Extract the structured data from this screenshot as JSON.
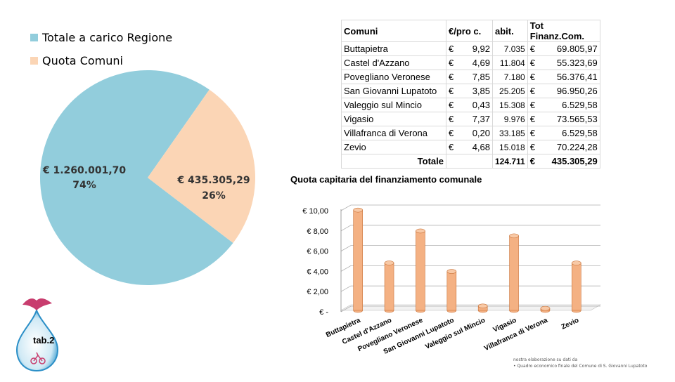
{
  "chart_data": [
    {
      "type": "pie",
      "series": [
        {
          "name": "Totale a carico Regione",
          "value": 1260001.7,
          "label": "€ 1.260.001,70",
          "percent_label": "74%",
          "color": "#92cddc"
        },
        {
          "name": "Quota Comuni",
          "value": 435305.29,
          "label": "€ 435.305,29",
          "percent_label": "26%",
          "color": "#fbd5b5"
        }
      ]
    },
    {
      "type": "table",
      "columns": [
        "Comuni",
        "€/pro c.",
        "abit.",
        "Tot Finanz.Com."
      ],
      "currency_symbol": "€",
      "rows": [
        {
          "comune": "Buttapietra",
          "pro_c": "9,92",
          "abit": "7.035",
          "tot": "69.805,97"
        },
        {
          "comune": "Castel d'Azzano",
          "pro_c": "4,69",
          "abit": "11.804",
          "tot": "55.323,69"
        },
        {
          "comune": "Povegliano Veronese",
          "pro_c": "7,85",
          "abit": "7.180",
          "tot": "56.376,41"
        },
        {
          "comune": "San Giovanni Lupatoto",
          "pro_c": "3,85",
          "abit": "25.205",
          "tot": "96.950,26"
        },
        {
          "comune": "Valeggio sul Mincio",
          "pro_c": "0,43",
          "abit": "15.308",
          "tot": "6.529,58"
        },
        {
          "comune": "Vigasio",
          "pro_c": "7,37",
          "abit": "9.976",
          "tot": "73.565,53"
        },
        {
          "comune": "Villafranca di Verona",
          "pro_c": "0,20",
          "abit": "33.185",
          "tot": "6.529,58"
        },
        {
          "comune": "Zevio",
          "pro_c": "4,68",
          "abit": "15.018",
          "tot": "70.224,28"
        }
      ],
      "total": {
        "label": "Totale",
        "abit": "124.711",
        "tot": "435.305,29"
      }
    },
    {
      "type": "bar",
      "title": "Quota capitaria del finanziamento comunale",
      "categories": [
        "Buttapietra",
        "Castel d'Azzano",
        "Povegliano Veronese",
        "San Giovanni Lupatoto",
        "Valeggio sul Mincio",
        "Vigasio",
        "Villafranca di Verona",
        "Zevio"
      ],
      "values": [
        9.92,
        4.69,
        7.85,
        3.85,
        0.43,
        7.37,
        0.2,
        4.68
      ],
      "ylim": [
        0,
        10
      ],
      "yticks": [
        "€ -",
        "€ 2,00",
        "€ 4,00",
        "€ 6,00",
        "€ 8,00",
        "€ 10,00"
      ],
      "grid": true,
      "bar_color": "#f4b183"
    }
  ],
  "branding": {
    "tab_label": "tab.2"
  },
  "notes": {
    "line1": "nostra elaborazione su dati da",
    "line2": "•  Quadro economico finale del Comune di S. Giovanni Lupatoto"
  }
}
